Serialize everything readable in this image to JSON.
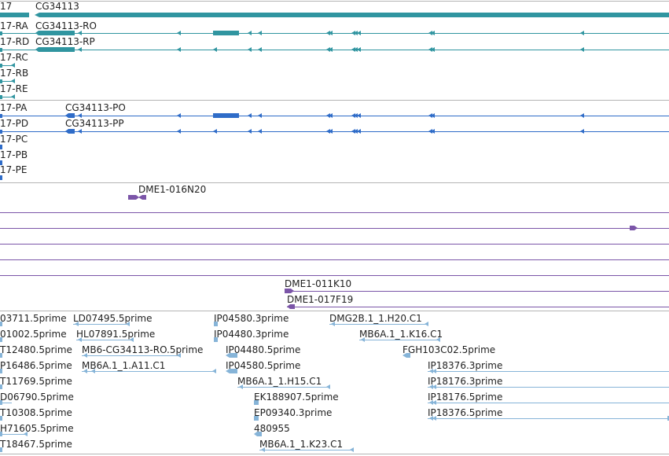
{
  "colors": {
    "gene": "#3095a0",
    "transcript_pa": "#2f6cc8",
    "clone": "#7b55a8",
    "est": "#86b4d8",
    "separator": "#b4b4b4",
    "text": "#1f1f1f"
  },
  "genes": {
    "left_label": "17",
    "main_label": "CG34113"
  },
  "transcripts_rna": [
    {
      "label": "CG34113-RO",
      "left_label": "17-RA"
    },
    {
      "label": "CG34113-RP",
      "left_label": "17-RD"
    },
    {
      "label": "",
      "left_label": "17-RC"
    },
    {
      "label": "",
      "left_label": "17-RB"
    },
    {
      "label": "",
      "left_label": "17-RE"
    }
  ],
  "transcripts_protein": [
    {
      "label": "CG34113-PO",
      "left_label": "17-PA"
    },
    {
      "label": "CG34113-PP",
      "left_label": "17-PD"
    },
    {
      "label": "",
      "left_label": "17-PC"
    },
    {
      "label": "",
      "left_label": "17-PB"
    },
    {
      "label": "",
      "left_label": "17-PE"
    }
  ],
  "clones": [
    "DME1-016N20",
    "DME1-011K10",
    "DME1-017F19"
  ],
  "ests": {
    "col1": [
      "03711.5prime",
      "01002.5prime",
      "T12480.5prime",
      "P16486.5prime",
      "T11769.5prime",
      "D06790.5prime",
      "T10308.5prime",
      "H71605.5prime",
      "T18467.5prime"
    ],
    "col2": [
      "LD07495.5prime",
      "HL07891.5prime",
      "MB6-CG34113-RO.5prime",
      "MB6A.1_1.A11.C1"
    ],
    "col3": [
      "IP04580.3prime",
      "IP04480.3prime",
      "IP04480.5prime",
      "IP04580.5prime",
      "MB6A.1_1.H15.C1",
      "EK188907.5prime",
      "EP09340.3prime",
      "480955",
      "MB6A.1_1.K23.C1"
    ],
    "col4": [
      "DMG2B.1_1.H20.C1",
      "MB6A.1_1.K16.C1",
      "FGH103C02.5prime"
    ],
    "col5": [
      "IP18376.3prime",
      "IP18176.3prime",
      "IP18176.5prime",
      "IP18376.5prime"
    ]
  }
}
